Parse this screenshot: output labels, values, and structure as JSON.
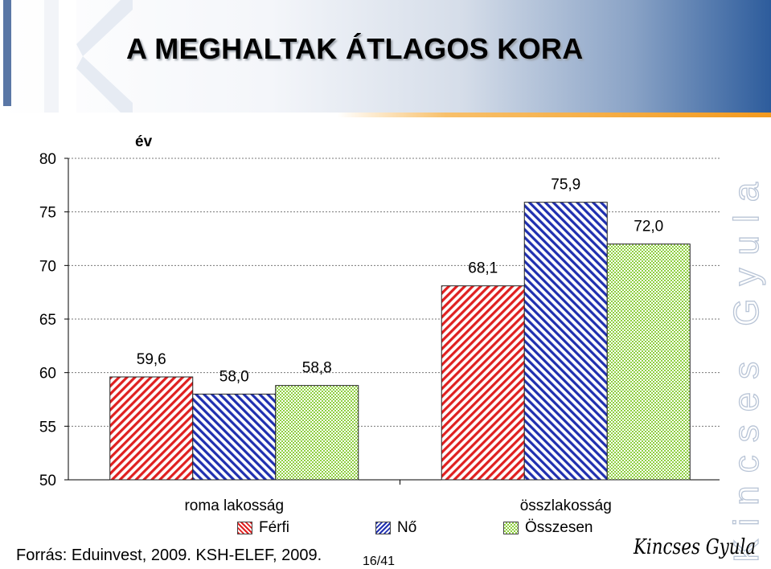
{
  "slide": {
    "title": "A MEGHALTAK ÁTLAGOS KORA",
    "source": "Forrás: Eduinvest, 2009. KSH-ELEF, 2009.",
    "page_number": "16/41",
    "author_signature": "Kincses Gyula",
    "watermark_text": "Kincses Gyula"
  },
  "chart_data": {
    "type": "bar",
    "ylabel": "év",
    "ylim": [
      50,
      80
    ],
    "yticks": [
      50,
      55,
      60,
      65,
      70,
      75,
      80
    ],
    "grid": true,
    "legend_position": "bottom",
    "categories": [
      "roma lakosság",
      "összlakosság"
    ],
    "series": [
      {
        "name": "Férfi",
        "values": [
          59.6,
          68.1
        ],
        "labels": [
          "59,6",
          "68,1"
        ],
        "color": "#e02020",
        "pattern": "diagonal-right"
      },
      {
        "name": "Nő",
        "values": [
          58.0,
          75.9
        ],
        "labels": [
          "58,0",
          "75,9"
        ],
        "color": "#2030b0",
        "pattern": "diagonal-left"
      },
      {
        "name": "Összesen",
        "values": [
          58.8,
          72.0
        ],
        "labels": [
          "58,8",
          "72,0"
        ],
        "color": "#8fd040",
        "pattern": "checker"
      }
    ]
  }
}
